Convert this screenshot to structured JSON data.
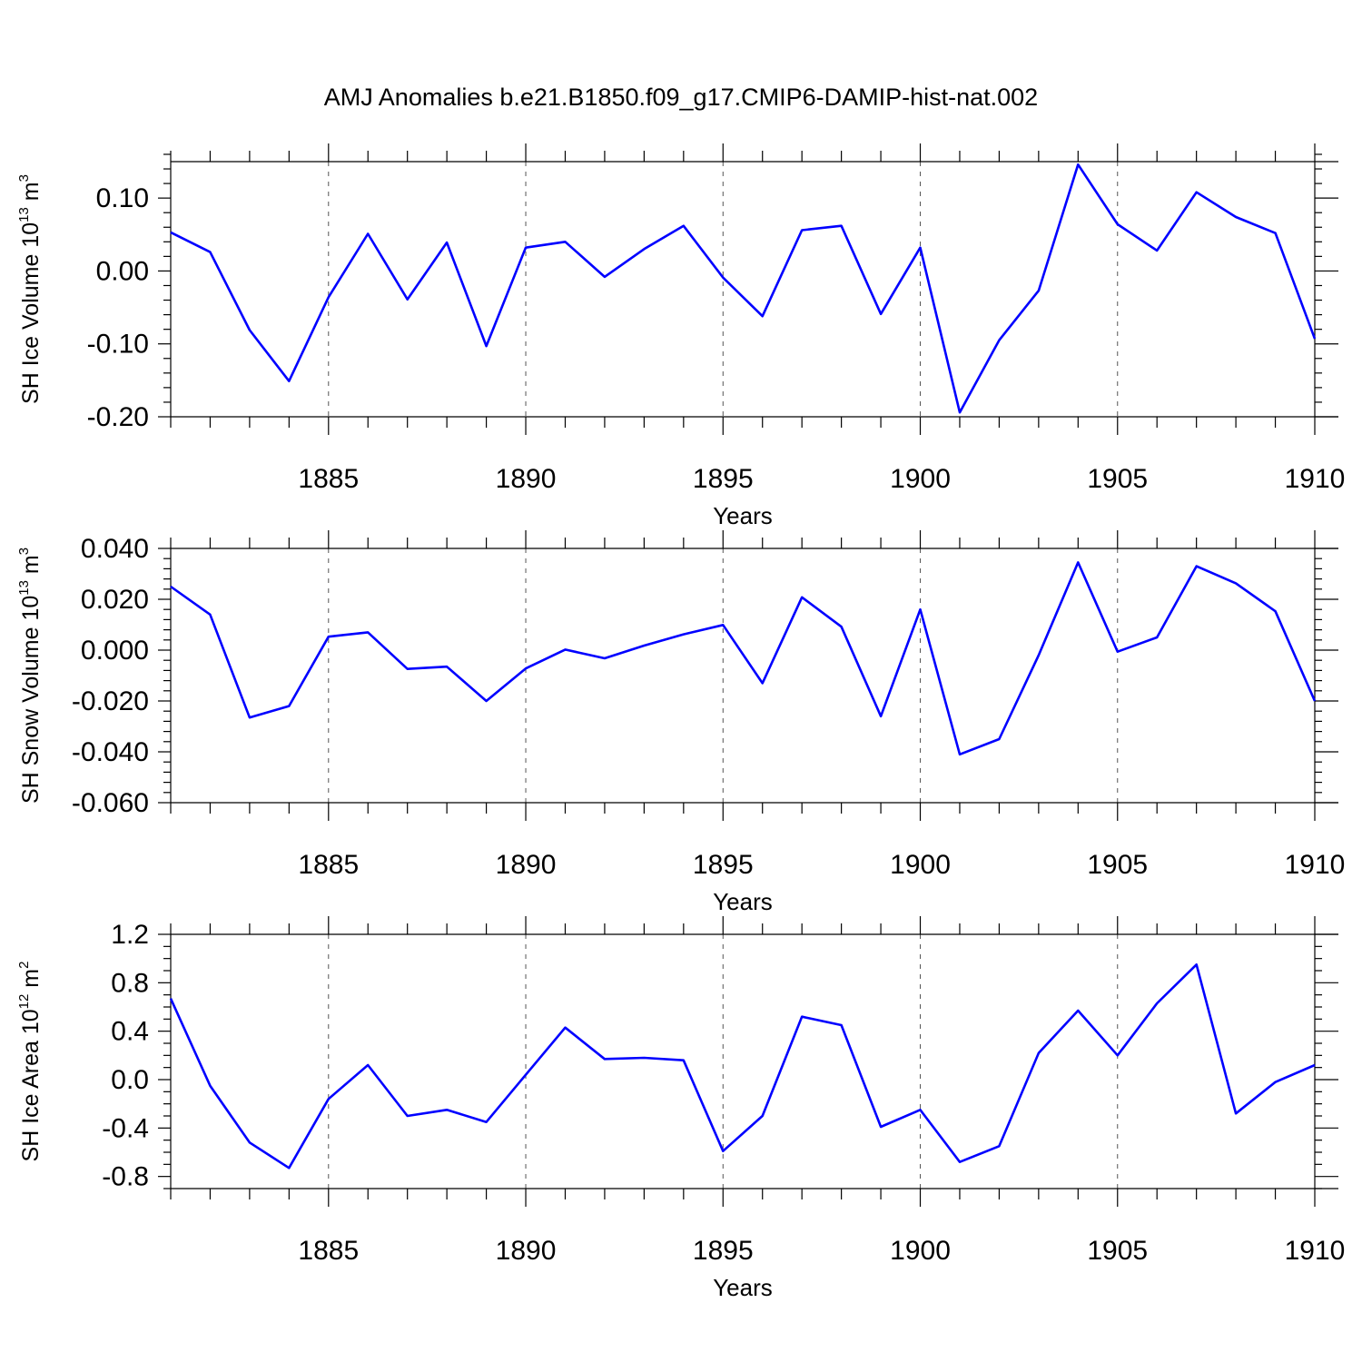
{
  "figure_title": "AMJ Anomalies b.e21.B1850.f09_g17.CMIP6-DAMIP-hist-nat.002",
  "colors": {
    "series": "#0000ff",
    "axes": "#000000",
    "grid": "#555555",
    "background": "#ffffff"
  },
  "chart_data": [
    {
      "type": "line",
      "title": "AMJ Anomalies b.e21.B1850.f09_g17.CMIP6-DAMIP-hist-nat.002",
      "xlabel": "Years",
      "ylabel": {
        "prefix": "SH Ice Volume 10",
        "exp1": "13",
        "mid": " m",
        "exp2": "3"
      },
      "xlim": [
        1881,
        1910
      ],
      "ylim": [
        -0.2,
        0.15
      ],
      "x_ticks": [
        1885,
        1890,
        1895,
        1900,
        1905,
        1910
      ],
      "x_tick_labels": [
        "1885",
        "1890",
        "1895",
        "1900",
        "1905",
        "1910"
      ],
      "y_ticks": [
        -0.2,
        -0.1,
        0.0,
        0.1
      ],
      "y_tick_labels": [
        "-0.20",
        "-0.10",
        "0.00",
        "0.10"
      ],
      "y_minor_step": 0.02,
      "grid": "dashed vertical at major x ticks",
      "x": [
        1881,
        1882,
        1883,
        1884,
        1885,
        1886,
        1887,
        1888,
        1889,
        1890,
        1891,
        1892,
        1893,
        1894,
        1895,
        1896,
        1897,
        1898,
        1899,
        1900,
        1901,
        1902,
        1903,
        1904,
        1905,
        1906,
        1907,
        1908,
        1909,
        1910
      ],
      "series": [
        {
          "name": "SH Ice Volume",
          "values": [
            0.053,
            0.026,
            -0.081,
            -0.151,
            -0.036,
            0.051,
            -0.039,
            0.039,
            -0.103,
            0.032,
            0.04,
            -0.008,
            0.03,
            0.062,
            -0.009,
            -0.062,
            0.056,
            0.062,
            -0.059,
            0.032,
            -0.194,
            -0.095,
            -0.027,
            0.146,
            0.064,
            0.028,
            0.108,
            0.074,
            0.052,
            -0.093
          ]
        }
      ]
    },
    {
      "type": "line",
      "xlabel": "Years",
      "ylabel": {
        "prefix": "SH Snow Volume 10",
        "exp1": "13",
        "mid": " m",
        "exp2": "3"
      },
      "xlim": [
        1881,
        1910
      ],
      "ylim": [
        -0.06,
        0.04
      ],
      "x_ticks": [
        1885,
        1890,
        1895,
        1900,
        1905,
        1910
      ],
      "x_tick_labels": [
        "1885",
        "1890",
        "1895",
        "1900",
        "1905",
        "1910"
      ],
      "y_ticks": [
        -0.06,
        -0.04,
        -0.02,
        0.0,
        0.02,
        0.04
      ],
      "y_tick_labels": [
        "-0.060",
        "-0.040",
        "-0.020",
        "0.000",
        "0.020",
        "0.040"
      ],
      "y_minor_step": 0.004,
      "grid": "dashed vertical at major x ticks",
      "x": [
        1881,
        1882,
        1883,
        1884,
        1885,
        1886,
        1887,
        1888,
        1889,
        1890,
        1891,
        1892,
        1893,
        1894,
        1895,
        1896,
        1897,
        1898,
        1899,
        1900,
        1901,
        1902,
        1903,
        1904,
        1905,
        1906,
        1907,
        1908,
        1909,
        1910
      ],
      "series": [
        {
          "name": "SH Snow Volume",
          "values": [
            0.025,
            0.014,
            -0.0265,
            -0.022,
            0.0053,
            0.007,
            -0.0074,
            -0.0065,
            -0.02,
            -0.0072,
            0.0002,
            -0.0032,
            0.0018,
            0.0062,
            0.0099,
            -0.013,
            0.0208,
            0.0092,
            -0.026,
            0.016,
            -0.041,
            -0.035,
            -0.002,
            0.0345,
            -0.0006,
            0.005,
            0.033,
            0.0263,
            0.0153,
            -0.02
          ]
        }
      ]
    },
    {
      "type": "line",
      "xlabel": "Years",
      "ylabel": {
        "prefix": "SH Ice Area 10",
        "exp1": "12",
        "mid": " m",
        "exp2": "2"
      },
      "xlim": [
        1881,
        1910
      ],
      "ylim": [
        -0.9,
        1.2
      ],
      "x_ticks": [
        1885,
        1890,
        1895,
        1900,
        1905,
        1910
      ],
      "x_tick_labels": [
        "1885",
        "1890",
        "1895",
        "1900",
        "1905",
        "1910"
      ],
      "y_ticks": [
        -0.8,
        -0.4,
        0.0,
        0.4,
        0.8,
        1.2
      ],
      "y_tick_labels": [
        "-0.8",
        "-0.4",
        "0.0",
        "0.4",
        "0.8",
        "1.2"
      ],
      "y_minor_step": 0.1,
      "grid": "dashed vertical at major x ticks",
      "x": [
        1881,
        1882,
        1883,
        1884,
        1885,
        1886,
        1887,
        1888,
        1889,
        1890,
        1891,
        1892,
        1893,
        1894,
        1895,
        1896,
        1897,
        1898,
        1899,
        1900,
        1901,
        1902,
        1903,
        1904,
        1905,
        1906,
        1907,
        1908,
        1909,
        1910
      ],
      "series": [
        {
          "name": "SH Ice Area",
          "values": [
            0.67,
            -0.05,
            -0.52,
            -0.73,
            -0.16,
            0.12,
            -0.3,
            -0.25,
            -0.35,
            0.04,
            0.43,
            0.17,
            0.18,
            0.16,
            -0.59,
            -0.3,
            0.52,
            0.45,
            -0.39,
            -0.25,
            -0.68,
            -0.55,
            0.22,
            0.57,
            0.2,
            0.63,
            0.95,
            -0.28,
            -0.02,
            0.12
          ]
        }
      ]
    }
  ]
}
